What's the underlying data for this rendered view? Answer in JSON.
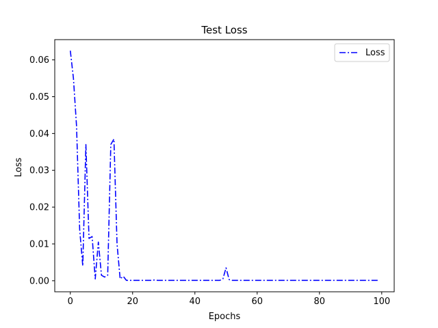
{
  "chart_data": {
    "type": "line",
    "title": "Test Loss",
    "xlabel": "Epochs",
    "ylabel": "Loss",
    "xlim": [
      -5,
      104
    ],
    "ylim": [
      -0.003,
      0.0655
    ],
    "xticks": [
      0,
      20,
      40,
      60,
      80,
      100
    ],
    "yticks": [
      0.0,
      0.01,
      0.02,
      0.03,
      0.04,
      0.05,
      0.06
    ],
    "ytick_labels": [
      "0.00",
      "0.01",
      "0.02",
      "0.03",
      "0.04",
      "0.05",
      "0.06"
    ],
    "grid": false,
    "legend_position": "top-right",
    "series": [
      {
        "name": "Loss",
        "color": "#0000ff",
        "linestyle": "dash-dot",
        "x": [
          0,
          1,
          2,
          3,
          4,
          5,
          6,
          7,
          8,
          9,
          10,
          11,
          12,
          13,
          14,
          15,
          16,
          17,
          18,
          19,
          20,
          21,
          22,
          23,
          24,
          25,
          26,
          27,
          28,
          29,
          30,
          31,
          32,
          33,
          34,
          35,
          36,
          37,
          38,
          39,
          40,
          41,
          42,
          43,
          44,
          45,
          46,
          47,
          48,
          49,
          50,
          51,
          52,
          53,
          54,
          55,
          56,
          57,
          58,
          59,
          60,
          61,
          62,
          63,
          64,
          65,
          66,
          67,
          68,
          69,
          70,
          71,
          72,
          73,
          74,
          75,
          76,
          77,
          78,
          79,
          80,
          81,
          82,
          83,
          84,
          85,
          86,
          87,
          88,
          89,
          90,
          91,
          92,
          93,
          94,
          95,
          96,
          97,
          98,
          99
        ],
        "values": [
          0.0625,
          0.055,
          0.042,
          0.014,
          0.004,
          0.037,
          0.0115,
          0.012,
          0.0005,
          0.0105,
          0.0015,
          0.001,
          0.0015,
          0.037,
          0.0385,
          0.01,
          0.0005,
          0.0012,
          0.0001,
          0.0001,
          0.0001,
          0.0001,
          0.0001,
          0.0001,
          0.0001,
          0.0001,
          0.0001,
          0.0002,
          0.0001,
          0.0001,
          0.0001,
          0.0001,
          0.0001,
          0.0001,
          0.0001,
          0.0001,
          0.0001,
          0.0001,
          0.0001,
          0.0001,
          0.0001,
          0.0001,
          0.0001,
          0.0001,
          0.0001,
          0.0001,
          0.0001,
          0.0001,
          0.0001,
          0.0005,
          0.0035,
          0.0003,
          0.0001,
          0.0001,
          0.0001,
          0.0001,
          0.0001,
          0.0001,
          0.0001,
          0.0001,
          0.0001,
          0.0001,
          0.0001,
          0.0001,
          0.0001,
          0.0001,
          0.0001,
          0.0001,
          0.0001,
          0.0001,
          0.0001,
          0.0001,
          0.0001,
          0.0001,
          0.0001,
          0.0001,
          0.0001,
          0.0001,
          0.0001,
          0.0001,
          0.0001,
          0.0001,
          0.0001,
          0.0001,
          0.0001,
          0.0001,
          0.0001,
          0.0001,
          0.0001,
          0.0001,
          0.0001,
          0.0001,
          0.0001,
          0.0001,
          0.0001,
          0.0001,
          0.0001,
          0.0001,
          0.0001,
          0.0001
        ]
      }
    ]
  }
}
